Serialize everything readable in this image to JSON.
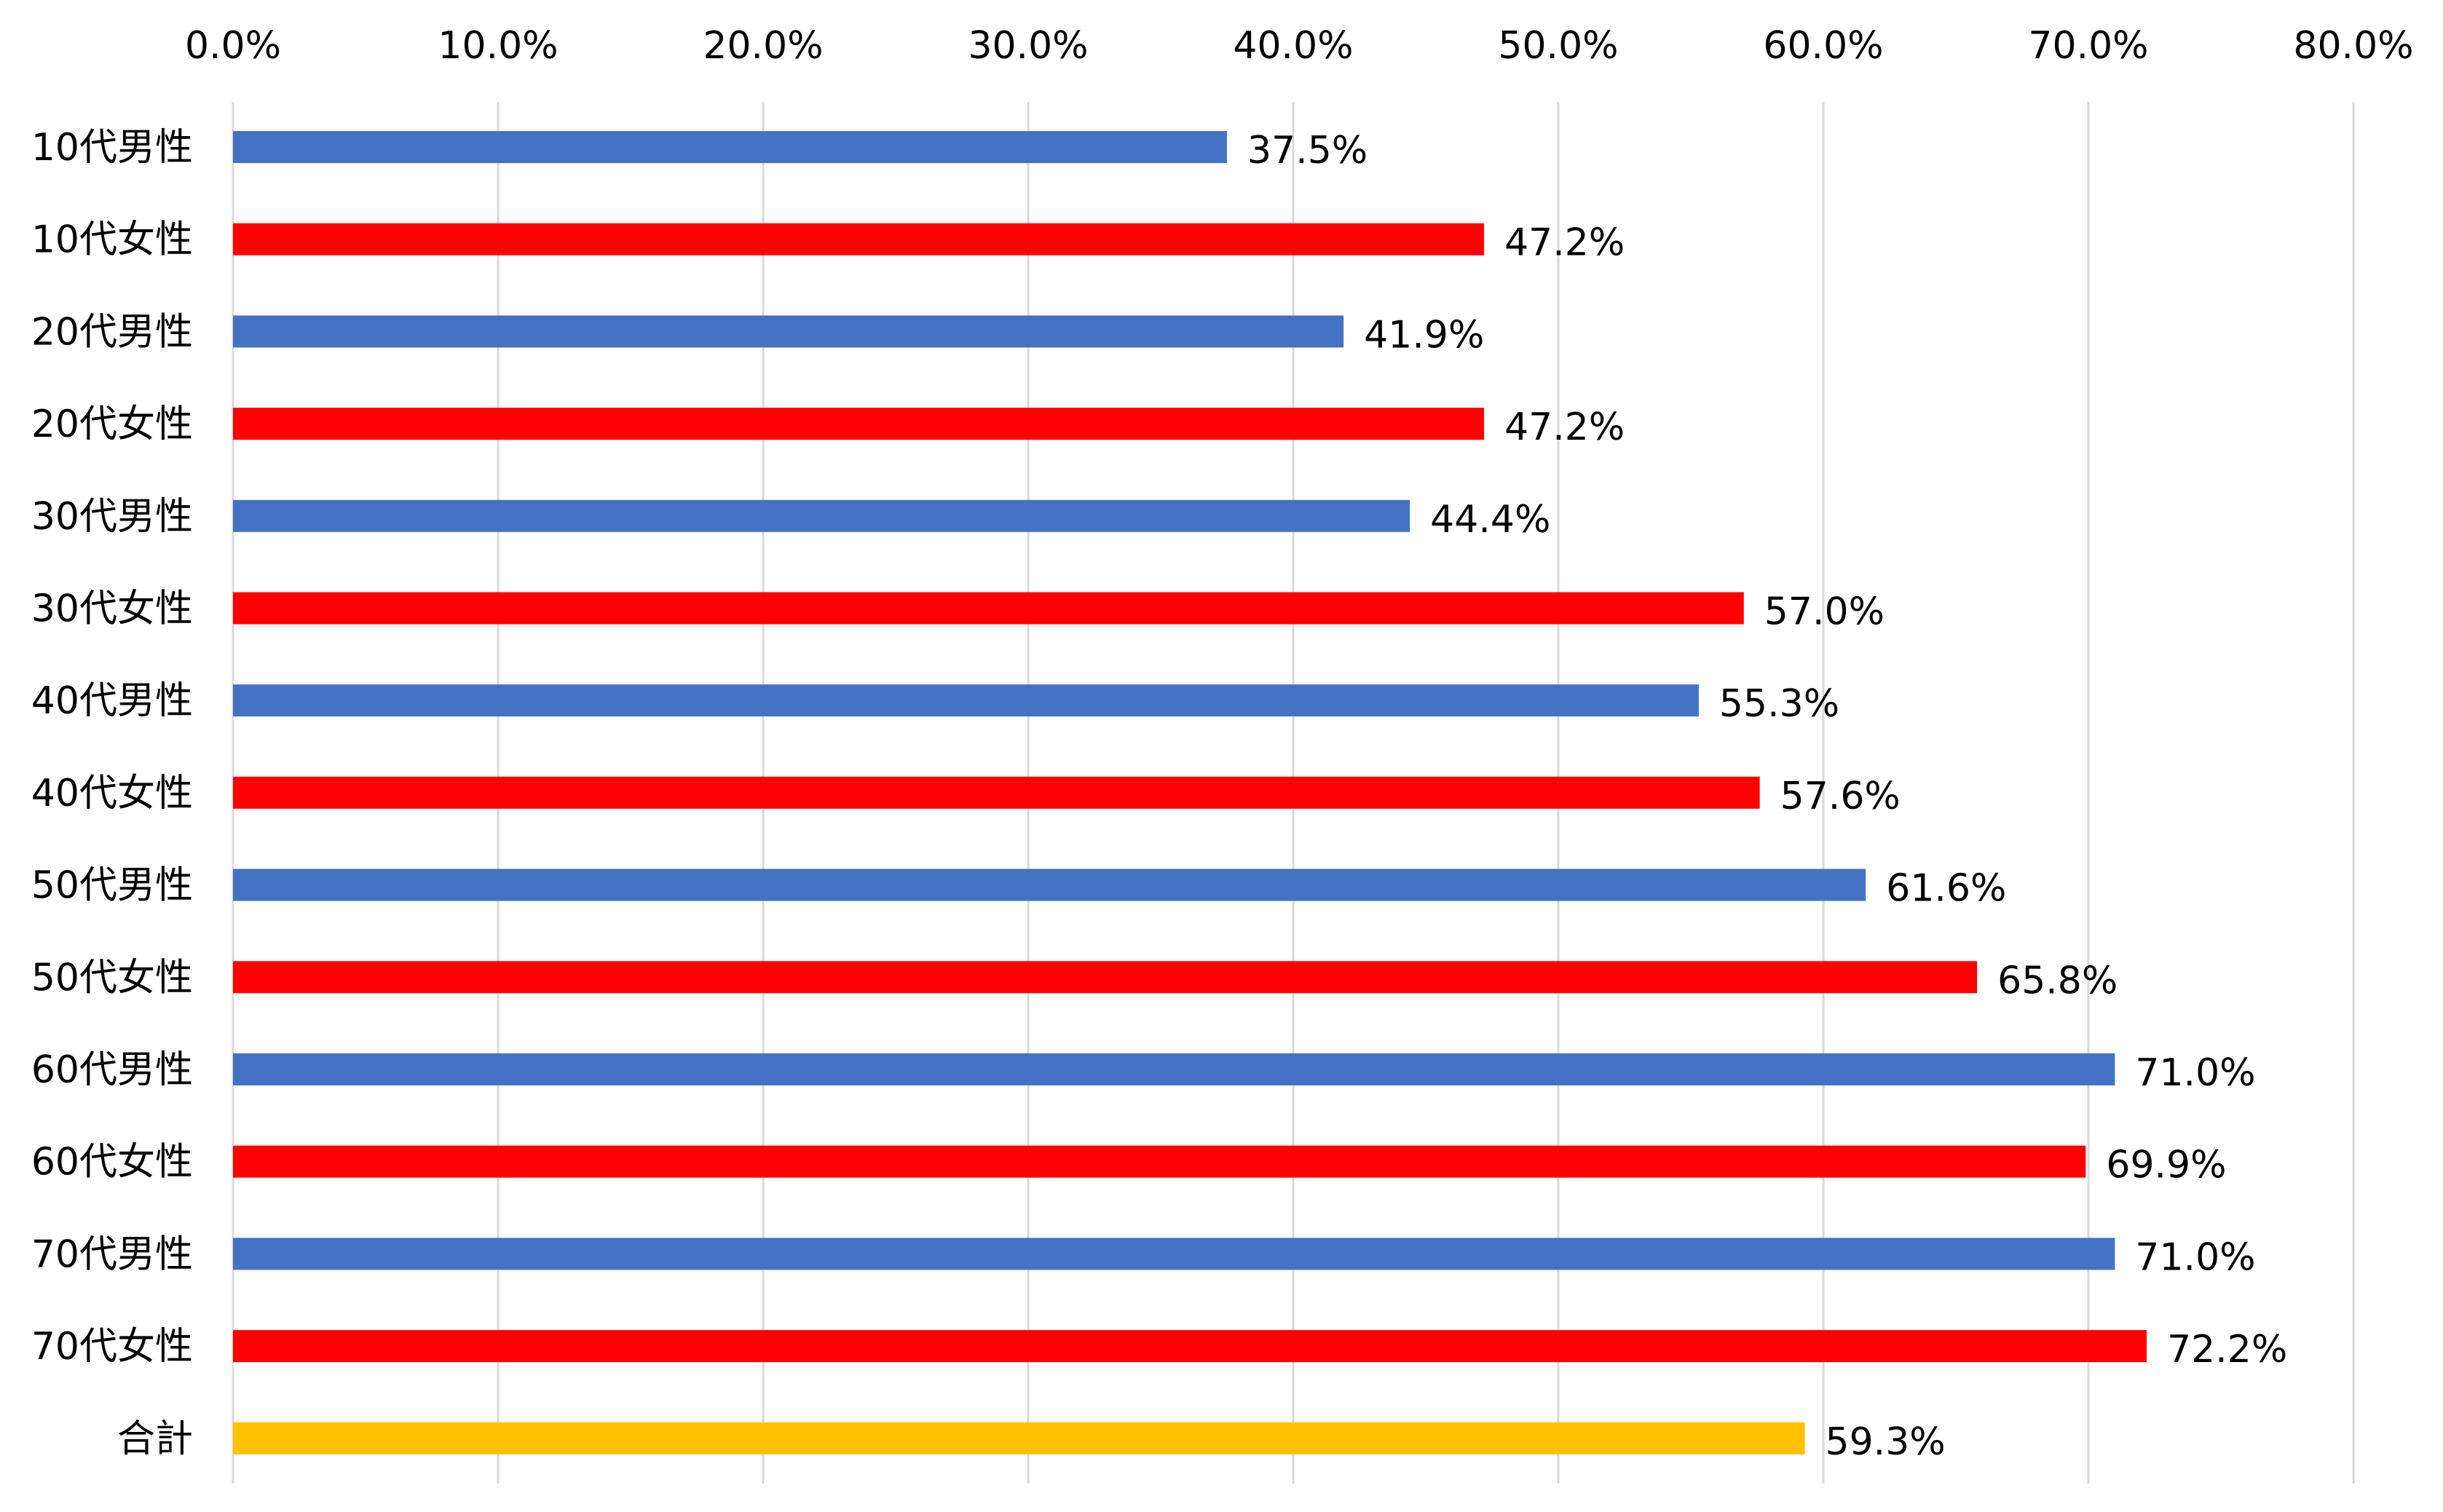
{
  "colors": {
    "male": "#4472C4",
    "female": "#FF0000",
    "total": "#FFC000",
    "grid": "#D9D9D9"
  },
  "chart_data": {
    "type": "bar",
    "orientation": "horizontal",
    "title": "",
    "xlabel": "",
    "ylabel": "",
    "xlim": [
      0,
      80
    ],
    "x_ticks": [
      0,
      10,
      20,
      30,
      40,
      50,
      60,
      70,
      80
    ],
    "x_tick_labels": [
      "0.0%",
      "10.0%",
      "20.0%",
      "30.0%",
      "40.0%",
      "50.0%",
      "60.0%",
      "70.0%",
      "80.0%"
    ],
    "x_axis_position": "top",
    "grid": true,
    "legend": "none",
    "categories": [
      "10代男性",
      "10代女性",
      "20代男性",
      "20代女性",
      "30代男性",
      "30代女性",
      "40代男性",
      "40代女性",
      "50代男性",
      "50代女性",
      "60代男性",
      "60代女性",
      "70代男性",
      "70代女性",
      "合計"
    ],
    "values": [
      37.5,
      47.2,
      41.9,
      47.2,
      44.4,
      57.0,
      55.3,
      57.6,
      61.6,
      65.8,
      71.0,
      69.9,
      71.0,
      72.2,
      59.3
    ],
    "value_labels": [
      "37.5%",
      "47.2%",
      "41.9%",
      "47.2%",
      "44.4%",
      "57.0%",
      "55.3%",
      "57.6%",
      "61.6%",
      "65.8%",
      "71.0%",
      "69.9%",
      "71.0%",
      "72.2%",
      "59.3%"
    ],
    "bar_groups": [
      "male",
      "female",
      "male",
      "female",
      "male",
      "female",
      "male",
      "female",
      "male",
      "female",
      "male",
      "female",
      "male",
      "female",
      "total"
    ]
  }
}
